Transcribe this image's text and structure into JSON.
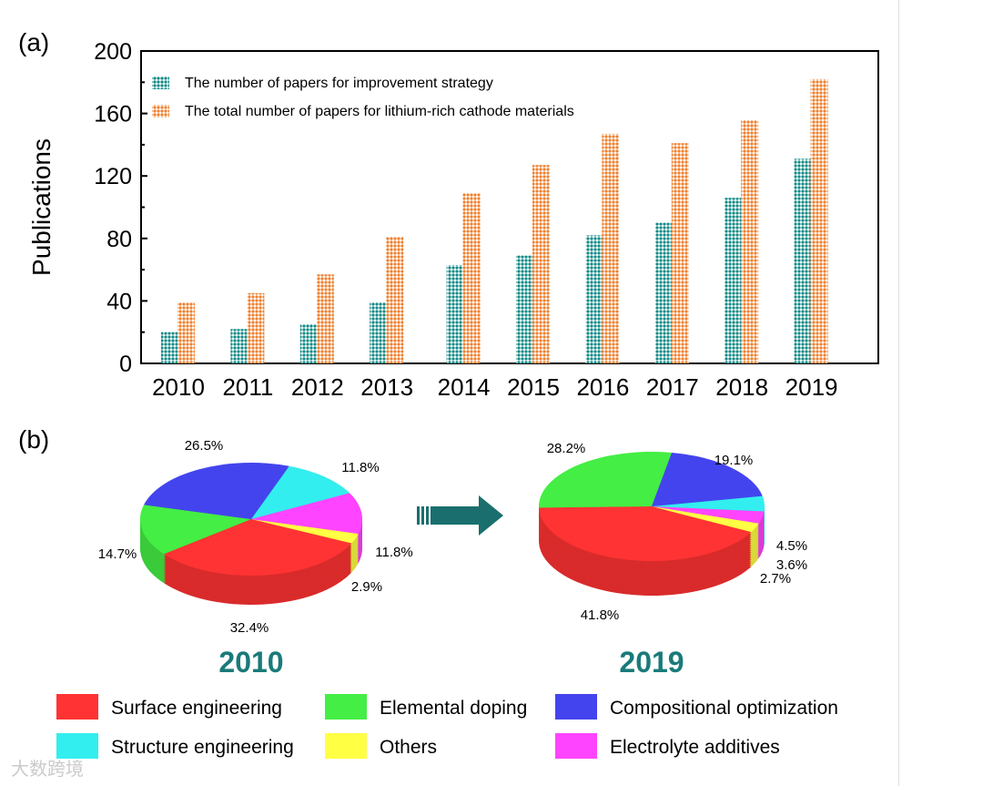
{
  "panel_labels": {
    "a": "(a)",
    "b": "(b)"
  },
  "colors": {
    "teal": "#0f8a86",
    "orange": "#f07f2d",
    "arrow": "#1a6f6e",
    "year_text": "#1a7a7a"
  },
  "watermark": "大数跨境",
  "chart_data": [
    {
      "type": "bar",
      "title": "",
      "xlabel": "",
      "ylabel": "Publications",
      "ylim": [
        0,
        200
      ],
      "yticks": [
        0,
        40,
        80,
        120,
        160,
        200
      ],
      "categories": [
        "2010",
        "2011",
        "2012",
        "2013",
        "2014",
        "2015",
        "2016",
        "2017",
        "2018",
        "2019"
      ],
      "series": [
        {
          "name": "The number of papers for improvement strategy",
          "color": "#0f8a86",
          "values": [
            20,
            22,
            25,
            39,
            63,
            69,
            82,
            90,
            106,
            131
          ]
        },
        {
          "name": "The total number of papers for lithium-rich cathode materials",
          "color": "#f07f2d",
          "values": [
            39,
            45,
            57,
            81,
            109,
            127,
            147,
            141,
            156,
            182
          ]
        }
      ],
      "legend_position": "top-left",
      "grid": false
    },
    {
      "type": "pie",
      "title": "2010",
      "slices": [
        {
          "label": "Others",
          "value": 2.9,
          "text": "2.9%"
        },
        {
          "label": "Surface engineering",
          "value": 32.4,
          "text": "32.4%"
        },
        {
          "label": "Elemental doping",
          "value": 14.7,
          "text": "14.7%"
        },
        {
          "label": "Compositional optimization",
          "value": 26.5,
          "text": "26.5%"
        },
        {
          "label": "Structure engineering",
          "value": 11.8,
          "text": "11.8%"
        },
        {
          "label": "Electrolyte additives",
          "value": 11.8,
          "text": "11.8%"
        }
      ]
    },
    {
      "type": "pie",
      "title": "2019",
      "slices": [
        {
          "label": "Surface engineering",
          "value": 41.8,
          "text": "41.8%"
        },
        {
          "label": "Elemental doping",
          "value": 28.2,
          "text": "28.2%"
        },
        {
          "label": "Compositional optimization",
          "value": 19.1,
          "text": "19.1%"
        },
        {
          "label": "Structure engineering",
          "value": 4.5,
          "text": "4.5%"
        },
        {
          "label": "Electrolyte additives",
          "value": 3.6,
          "text": "3.6%"
        },
        {
          "label": "Others",
          "value": 2.7,
          "text": "2.7%"
        }
      ]
    }
  ],
  "pie_legend": [
    {
      "label": "Surface engineering",
      "color": "#ff3333"
    },
    {
      "label": "Elemental doping",
      "color": "#44ee44"
    },
    {
      "label": "Compositional optimization",
      "color": "#4444ee"
    },
    {
      "label": "Structure engineering",
      "color": "#33eeee"
    },
    {
      "label": "Others",
      "color": "#ffff44"
    },
    {
      "label": "Electrolyte additives",
      "color": "#ff44ff"
    }
  ]
}
